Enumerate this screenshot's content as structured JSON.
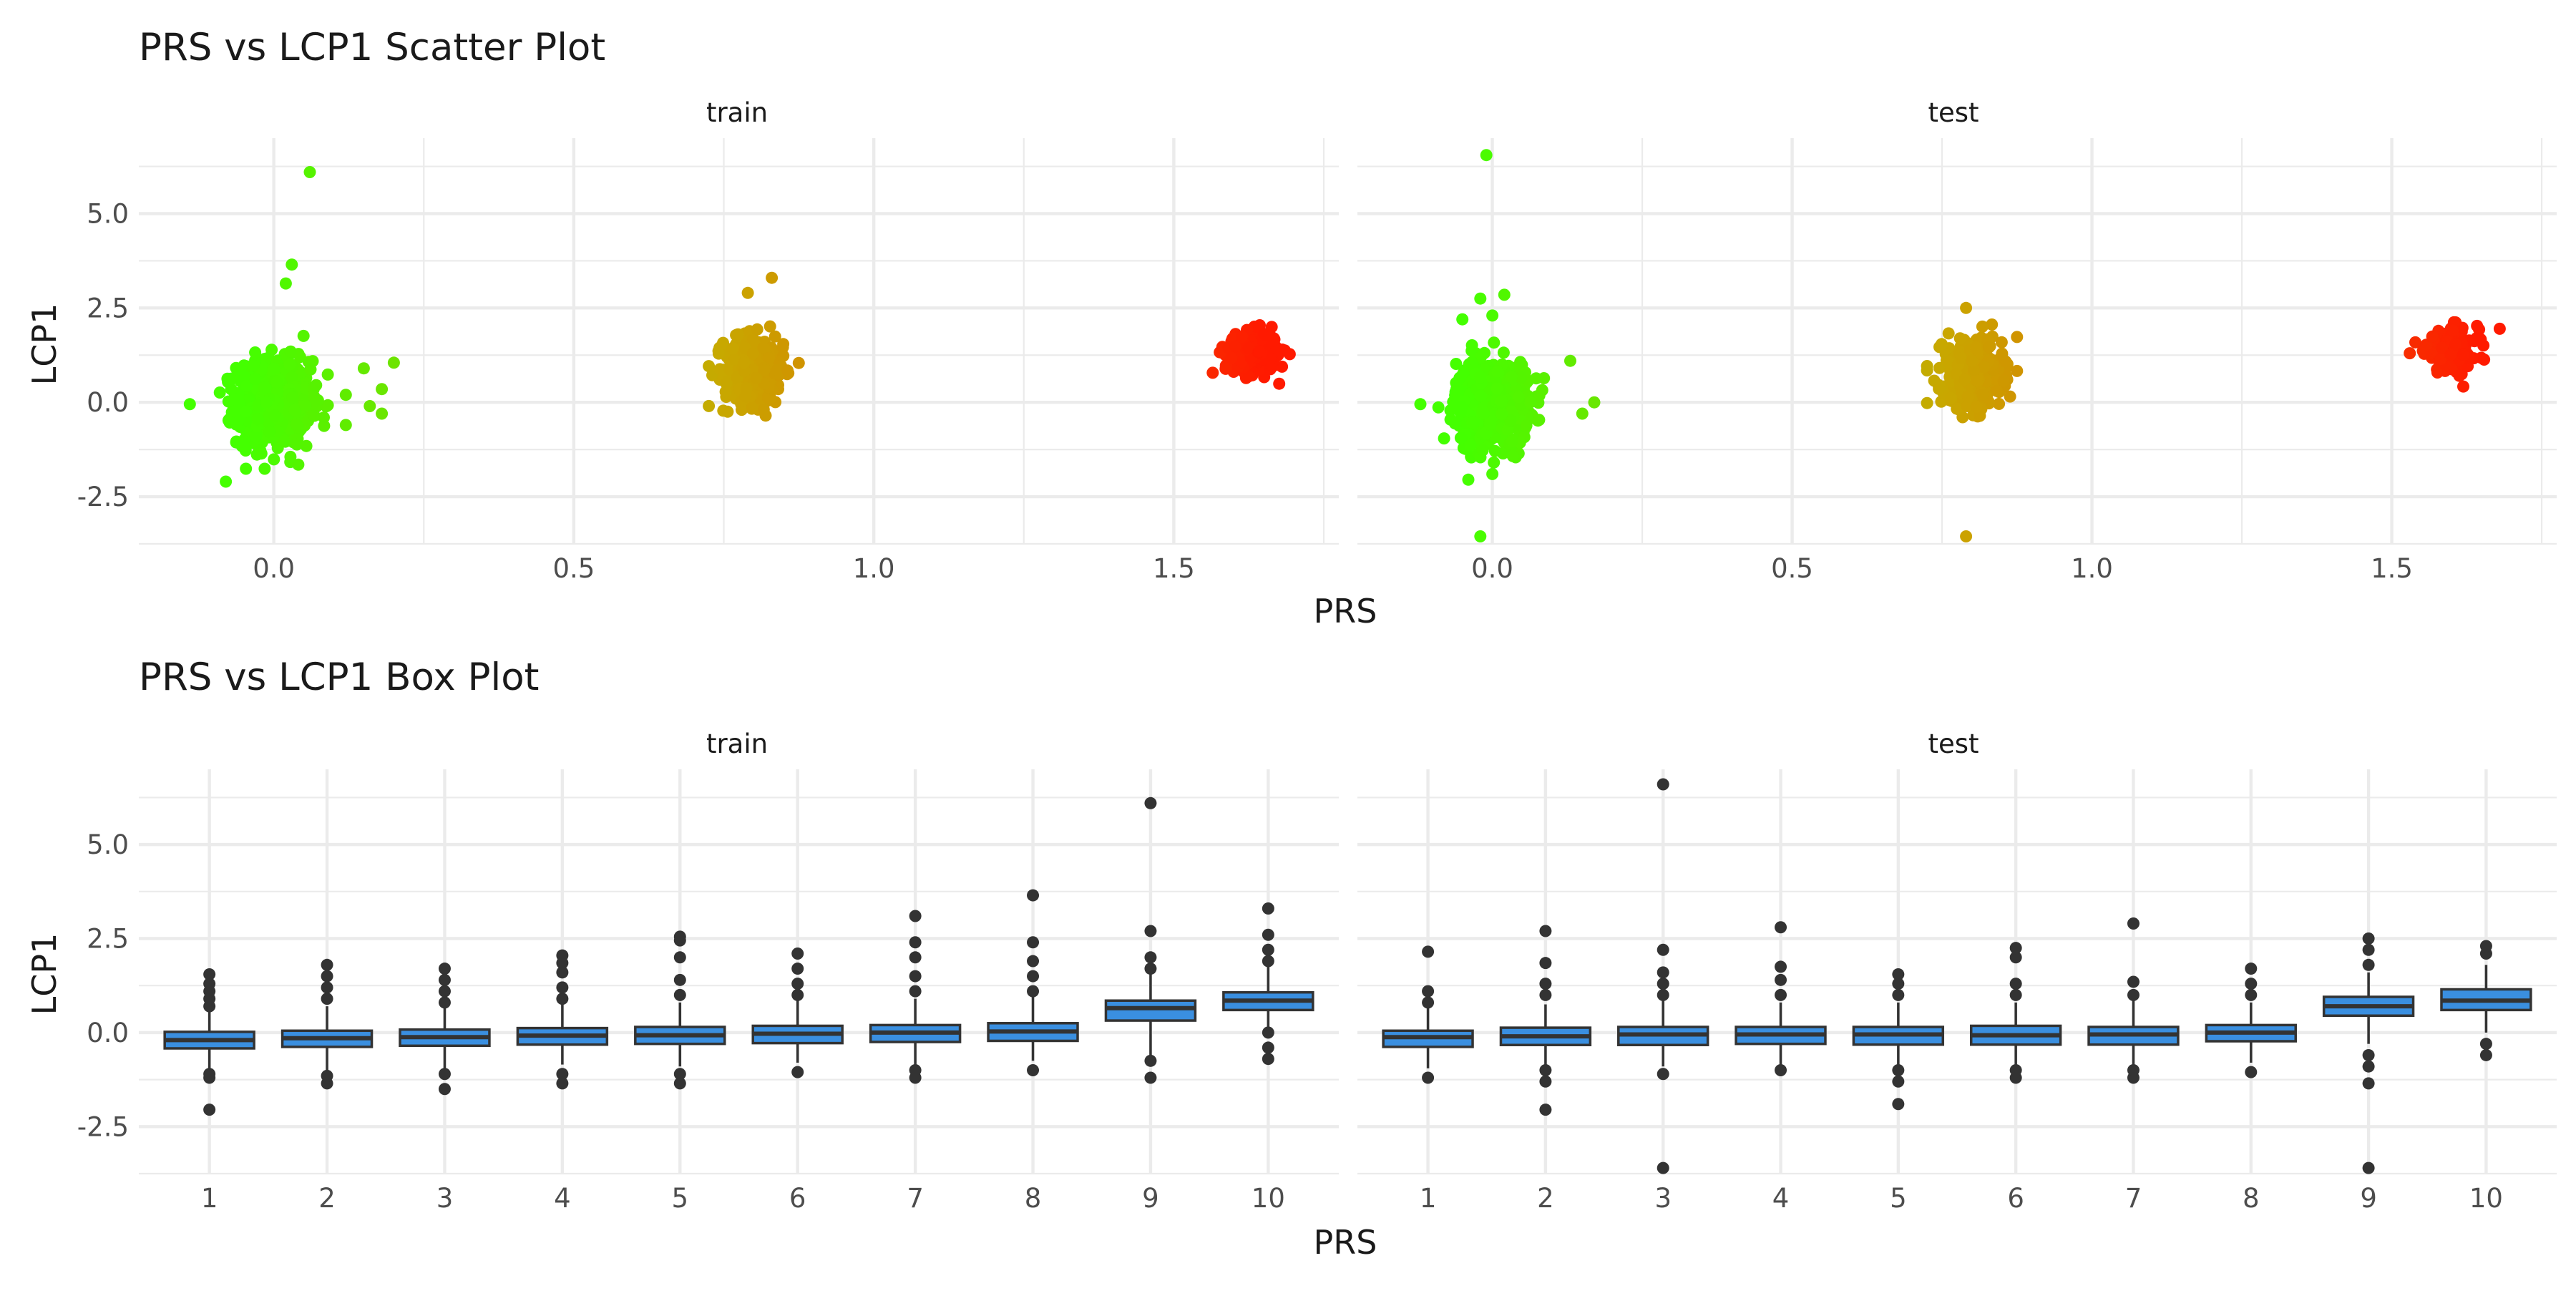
{
  "chart_data": [
    {
      "type": "scatter",
      "title": "PRS vs LCP1 Scatter Plot",
      "xlabel": "PRS",
      "ylabel": "LCP1",
      "xlim": [
        -0.225,
        1.775
      ],
      "ylim": [
        -3.75,
        7.0
      ],
      "x_ticks": [
        0.0,
        0.5,
        1.0,
        1.5
      ],
      "x_tick_labels": [
        "0.0",
        "0.5",
        "1.0",
        "1.5"
      ],
      "y_ticks": [
        -2.5,
        0.0,
        2.5,
        5.0
      ],
      "y_tick_labels": [
        "-2.5",
        "0.0",
        "2.5",
        "5.0"
      ],
      "grid": true,
      "legend": "none",
      "color_scale": {
        "low": "#44ff00",
        "mid": "#c8a800",
        "high": "#ff1a00"
      },
      "panels": [
        {
          "name": "train",
          "clusters": [
            {
              "prs_center": 0.0,
              "prs_sd": 0.03,
              "lcp1_center": 0.0,
              "lcp1_sd": 0.55,
              "n": 900
            },
            {
              "prs_center": 0.8,
              "prs_sd": 0.025,
              "lcp1_center": 0.85,
              "lcp1_sd": 0.45,
              "n": 450
            },
            {
              "prs_center": 1.63,
              "prs_sd": 0.022,
              "lcp1_center": 1.3,
              "lcp1_sd": 0.28,
              "n": 220
            }
          ],
          "notable_points": [
            {
              "x": 0.06,
              "y": 6.1
            },
            {
              "x": 0.03,
              "y": 3.65
            },
            {
              "x": 0.02,
              "y": 3.15
            },
            {
              "x": 0.83,
              "y": 3.3
            },
            {
              "x": 0.79,
              "y": 2.9
            },
            {
              "x": -0.08,
              "y": -2.1
            },
            {
              "x": 0.2,
              "y": 1.05
            },
            {
              "x": 0.15,
              "y": 0.9
            },
            {
              "x": 0.18,
              "y": 0.35
            },
            {
              "x": 0.12,
              "y": 0.2
            },
            {
              "x": 0.16,
              "y": -0.1
            },
            {
              "x": 0.12,
              "y": -0.6
            },
            {
              "x": 0.18,
              "y": -0.3
            },
            {
              "x": -0.14,
              "y": -0.05
            }
          ]
        },
        {
          "name": "test",
          "clusters": [
            {
              "prs_center": 0.0,
              "prs_sd": 0.03,
              "lcp1_center": 0.0,
              "lcp1_sd": 0.55,
              "n": 700
            },
            {
              "prs_center": 0.8,
              "prs_sd": 0.025,
              "lcp1_center": 0.75,
              "lcp1_sd": 0.45,
              "n": 350
            },
            {
              "prs_center": 1.6,
              "prs_sd": 0.022,
              "lcp1_center": 1.35,
              "lcp1_sd": 0.3,
              "n": 180
            }
          ],
          "notable_points": [
            {
              "x": -0.01,
              "y": 6.55
            },
            {
              "x": 0.02,
              "y": 2.85
            },
            {
              "x": -0.02,
              "y": 2.75
            },
            {
              "x": 0.0,
              "y": 2.3
            },
            {
              "x": -0.05,
              "y": 2.2
            },
            {
              "x": -0.04,
              "y": -2.05
            },
            {
              "x": 0.0,
              "y": -1.9
            },
            {
              "x": -0.02,
              "y": -3.55
            },
            {
              "x": 0.79,
              "y": -3.55
            },
            {
              "x": 0.79,
              "y": 2.5
            },
            {
              "x": 0.13,
              "y": 1.1
            },
            {
              "x": 0.17,
              "y": 0.0
            },
            {
              "x": 0.15,
              "y": -0.3
            },
            {
              "x": -0.12,
              "y": -0.05
            },
            {
              "x": 1.68,
              "y": 1.95
            },
            {
              "x": 1.53,
              "y": 1.3
            }
          ]
        }
      ]
    },
    {
      "type": "box",
      "title": "PRS vs LCP1 Box Plot",
      "xlabel": "PRS",
      "ylabel": "LCP1",
      "categories": [
        "1",
        "2",
        "3",
        "4",
        "5",
        "6",
        "7",
        "8",
        "9",
        "10"
      ],
      "ylim": [
        -3.75,
        7.0
      ],
      "y_ticks": [
        -2.5,
        0.0,
        2.5,
        5.0
      ],
      "y_tick_labels": [
        "-2.5",
        "0.0",
        "2.5",
        "5.0"
      ],
      "grid": true,
      "box_fill": "#3a8fe0",
      "panels": [
        {
          "name": "train",
          "boxes": [
            {
              "q1": -0.42,
              "median": -0.2,
              "q3": 0.02,
              "whisker_low": -1.05,
              "whisker_high": 0.6,
              "outliers": [
                -2.05,
                -1.2,
                -1.1,
                0.7,
                0.9,
                1.1,
                1.3,
                1.55
              ]
            },
            {
              "q1": -0.38,
              "median": -0.15,
              "q3": 0.05,
              "whisker_low": -1.0,
              "whisker_high": 0.7,
              "outliers": [
                -1.35,
                -1.15,
                0.9,
                1.2,
                1.5,
                1.8
              ]
            },
            {
              "q1": -0.35,
              "median": -0.12,
              "q3": 0.08,
              "whisker_low": -0.95,
              "whisker_high": 0.7,
              "outliers": [
                -1.5,
                -1.1,
                0.8,
                1.1,
                1.4,
                1.7
              ]
            },
            {
              "q1": -0.32,
              "median": -0.08,
              "q3": 0.12,
              "whisker_low": -0.85,
              "whisker_high": 0.75,
              "outliers": [
                -1.35,
                -1.1,
                0.9,
                1.2,
                1.6,
                1.85,
                2.05
              ]
            },
            {
              "q1": -0.3,
              "median": -0.07,
              "q3": 0.15,
              "whisker_low": -0.9,
              "whisker_high": 0.8,
              "outliers": [
                -1.35,
                -1.1,
                1.0,
                1.4,
                2.0,
                2.45,
                2.55
              ]
            },
            {
              "q1": -0.28,
              "median": -0.03,
              "q3": 0.18,
              "whisker_low": -0.8,
              "whisker_high": 0.85,
              "outliers": [
                -1.05,
                1.0,
                1.3,
                1.7,
                2.1
              ]
            },
            {
              "q1": -0.25,
              "median": 0.0,
              "q3": 0.2,
              "whisker_low": -0.85,
              "whisker_high": 0.9,
              "outliers": [
                -1.2,
                -1.0,
                1.1,
                1.5,
                2.0,
                2.4,
                3.1
              ]
            },
            {
              "q1": -0.22,
              "median": 0.03,
              "q3": 0.25,
              "whisker_low": -0.75,
              "whisker_high": 0.95,
              "outliers": [
                -1.0,
                1.1,
                1.5,
                1.9,
                2.4,
                3.65
              ]
            },
            {
              "q1": 0.32,
              "median": 0.65,
              "q3": 0.85,
              "whisker_low": -0.6,
              "whisker_high": 1.55,
              "outliers": [
                -1.2,
                -0.75,
                1.7,
                2.0,
                2.7,
                6.1
              ]
            },
            {
              "q1": 0.6,
              "median": 0.85,
              "q3": 1.07,
              "whisker_low": 0.1,
              "whisker_high": 1.75,
              "outliers": [
                -0.7,
                -0.4,
                0.0,
                1.9,
                2.2,
                2.6,
                3.3
              ]
            }
          ]
        },
        {
          "name": "test",
          "boxes": [
            {
              "q1": -0.38,
              "median": -0.12,
              "q3": 0.05,
              "whisker_low": -0.95,
              "whisker_high": 0.7,
              "outliers": [
                -1.2,
                0.8,
                1.1,
                2.15
              ]
            },
            {
              "q1": -0.33,
              "median": -0.1,
              "q3": 0.13,
              "whisker_low": -0.9,
              "whisker_high": 0.75,
              "outliers": [
                -2.05,
                -1.3,
                -1.0,
                1.0,
                1.3,
                1.85,
                2.7
              ]
            },
            {
              "q1": -0.33,
              "median": -0.05,
              "q3": 0.15,
              "whisker_low": -0.9,
              "whisker_high": 0.85,
              "outliers": [
                -3.6,
                -1.1,
                1.0,
                1.3,
                1.6,
                2.2,
                6.6
              ]
            },
            {
              "q1": -0.3,
              "median": -0.05,
              "q3": 0.15,
              "whisker_low": -0.85,
              "whisker_high": 0.8,
              "outliers": [
                -1.0,
                1.0,
                1.4,
                1.75,
                2.8
              ]
            },
            {
              "q1": -0.32,
              "median": -0.05,
              "q3": 0.15,
              "whisker_low": -0.9,
              "whisker_high": 0.8,
              "outliers": [
                -1.9,
                -1.3,
                -1.0,
                1.0,
                1.3,
                1.55
              ]
            },
            {
              "q1": -0.32,
              "median": -0.07,
              "q3": 0.18,
              "whisker_low": -0.9,
              "whisker_high": 0.8,
              "outliers": [
                -1.2,
                -1.0,
                1.0,
                1.3,
                2.0,
                2.25
              ]
            },
            {
              "q1": -0.32,
              "median": -0.05,
              "q3": 0.15,
              "whisker_low": -0.9,
              "whisker_high": 0.85,
              "outliers": [
                -1.2,
                -1.0,
                1.0,
                1.35,
                2.9
              ]
            },
            {
              "q1": -0.23,
              "median": 0.0,
              "q3": 0.2,
              "whisker_low": -0.8,
              "whisker_high": 0.8,
              "outliers": [
                -1.05,
                1.0,
                1.3,
                1.7
              ]
            },
            {
              "q1": 0.45,
              "median": 0.7,
              "q3": 0.95,
              "whisker_low": -0.3,
              "whisker_high": 1.6,
              "outliers": [
                -3.6,
                -1.35,
                -0.9,
                -0.6,
                1.8,
                2.2,
                2.5
              ]
            },
            {
              "q1": 0.6,
              "median": 0.85,
              "q3": 1.15,
              "whisker_low": 0.0,
              "whisker_high": 1.8,
              "outliers": [
                -0.6,
                -0.3,
                2.1,
                2.3
              ]
            }
          ]
        }
      ]
    }
  ]
}
